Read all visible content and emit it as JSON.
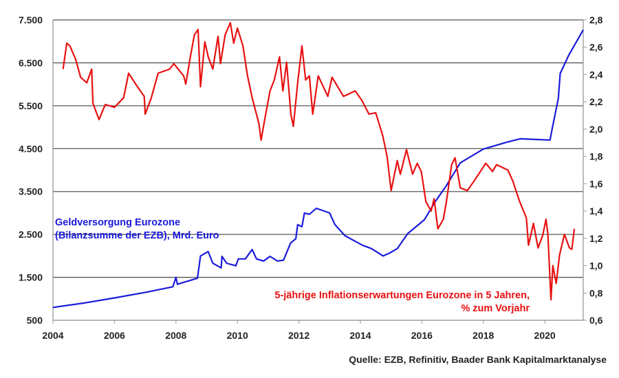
{
  "chart_data": {
    "type": "line",
    "title": "",
    "source": "Quelle: EZB, Refinitiv, Baader Bank Kapitalmarktanalyse",
    "xlim": [
      2004,
      2021.25
    ],
    "x_ticks": [
      "2004",
      "2006",
      "2008",
      "2010",
      "2012",
      "2014",
      "2016",
      "2018",
      "2020"
    ],
    "x_tick_values": [
      2004,
      2006,
      2008,
      2010,
      2012,
      2014,
      2016,
      2018,
      2020
    ],
    "y_left": {
      "lim": [
        500,
        7500
      ],
      "ticks": [
        7500,
        6500,
        5500,
        4500,
        3500,
        2500,
        1500,
        500
      ],
      "tick_labels": [
        "7.500",
        "6.500",
        "5.500",
        "4.500",
        "3.500",
        "2.500",
        "1.500",
        "500"
      ]
    },
    "y_right": {
      "lim": [
        0.6,
        2.8
      ],
      "ticks": [
        2.8,
        2.6,
        2.4,
        2.2,
        2.0,
        1.8,
        1.6,
        1.4,
        1.2,
        1.0,
        0.8,
        0.6
      ],
      "tick_labels": [
        "2,8",
        "2,6",
        "2,4",
        "2,2",
        "2,0",
        "1,8",
        "1,6",
        "1,4",
        "1,2",
        "1,0",
        "0,8",
        "0,6"
      ]
    },
    "grid": true,
    "series": [
      {
        "name": "Geldversorgung Eurozone (Bilanzsumme der EZB), Mrd. Euro",
        "label_lines": [
          "Geldversorgung Eurozone",
          "(Bilanzsumme der EZB), Mrd. Euro"
        ],
        "axis": "left",
        "color": "#1a1adb",
        "x": [
          2004.0,
          2005.0,
          2006.0,
          2007.0,
          2007.9,
          2008.0,
          2008.05,
          2008.7,
          2008.8,
          2009.05,
          2009.2,
          2009.47,
          2009.5,
          2009.65,
          2009.95,
          2010.03,
          2010.26,
          2010.48,
          2010.62,
          2010.85,
          2011.06,
          2011.3,
          2011.5,
          2011.73,
          2011.9,
          2011.96,
          2012.1,
          2012.18,
          2012.34,
          2012.57,
          2013.0,
          2013.17,
          2013.5,
          2014.07,
          2014.36,
          2014.74,
          2014.96,
          2015.2,
          2015.54,
          2016.08,
          2016.44,
          2016.8,
          2017.25,
          2018.0,
          2018.76,
          2019.2,
          2020.17,
          2020.24,
          2020.44,
          2020.5,
          2020.78,
          2021.25
        ],
        "y": [
          800,
          900,
          1020,
          1150,
          1280,
          1500,
          1340,
          1480,
          2000,
          2100,
          1830,
          1720,
          1990,
          1830,
          1770,
          1930,
          1930,
          2150,
          1930,
          1880,
          1990,
          1880,
          1900,
          2300,
          2400,
          2730,
          2680,
          3000,
          2970,
          3110,
          3000,
          2730,
          2470,
          2250,
          2170,
          2000,
          2070,
          2170,
          2520,
          2840,
          3270,
          3640,
          4170,
          4490,
          4650,
          4730,
          4700,
          4970,
          5670,
          6250,
          6680,
          7270
        ]
      },
      {
        "name": "5-jährige Inflationserwartungen Eurozone in 5 Jahren, % zum Vorjahr",
        "label_lines": [
          "5-jährige Inflationserwartungen Eurozone in 5 Jahren,",
          "% zum Vorjahr"
        ],
        "axis": "right",
        "color": "#e81010",
        "x": [
          2004.33,
          2004.45,
          2004.55,
          2004.74,
          2004.9,
          2005.1,
          2005.26,
          2005.3,
          2005.5,
          2005.7,
          2006.0,
          2006.3,
          2006.46,
          2006.75,
          2006.97,
          2007.0,
          2007.2,
          2007.42,
          2007.8,
          2007.93,
          2008.25,
          2008.32,
          2008.47,
          2008.6,
          2008.72,
          2008.8,
          2008.94,
          2009.05,
          2009.2,
          2009.37,
          2009.45,
          2009.6,
          2009.77,
          2009.88,
          2010.0,
          2010.18,
          2010.33,
          2010.48,
          2010.7,
          2010.77,
          2010.92,
          2011.06,
          2011.2,
          2011.37,
          2011.48,
          2011.6,
          2011.74,
          2011.82,
          2011.96,
          2012.1,
          2012.22,
          2012.34,
          2012.45,
          2012.63,
          2012.94,
          2013.08,
          2013.45,
          2013.83,
          2014.05,
          2014.28,
          2014.5,
          2014.73,
          2014.87,
          2015.0,
          2015.2,
          2015.3,
          2015.5,
          2015.7,
          2015.85,
          2015.98,
          2016.13,
          2016.3,
          2016.4,
          2016.52,
          2016.7,
          2016.8,
          2016.97,
          2017.08,
          2017.25,
          2017.48,
          2017.7,
          2018.08,
          2018.3,
          2018.43,
          2018.8,
          2018.96,
          2019.18,
          2019.4,
          2019.47,
          2019.63,
          2019.78,
          2019.93,
          2020.04,
          2020.1,
          2020.2,
          2020.26,
          2020.37,
          2020.48,
          2020.64,
          2020.8,
          2020.88,
          2020.96
        ],
        "y": [
          2.44,
          2.63,
          2.61,
          2.51,
          2.38,
          2.34,
          2.44,
          2.19,
          2.07,
          2.18,
          2.16,
          2.23,
          2.41,
          2.31,
          2.24,
          2.11,
          2.23,
          2.41,
          2.44,
          2.48,
          2.39,
          2.33,
          2.53,
          2.69,
          2.73,
          2.31,
          2.64,
          2.53,
          2.44,
          2.68,
          2.48,
          2.69,
          2.78,
          2.63,
          2.74,
          2.61,
          2.39,
          2.23,
          2.04,
          1.92,
          2.11,
          2.28,
          2.36,
          2.53,
          2.28,
          2.49,
          2.11,
          2.02,
          2.34,
          2.61,
          2.36,
          2.39,
          2.11,
          2.39,
          2.24,
          2.38,
          2.24,
          2.28,
          2.21,
          2.11,
          2.12,
          1.95,
          1.8,
          1.55,
          1.77,
          1.67,
          1.85,
          1.67,
          1.75,
          1.69,
          1.47,
          1.4,
          1.49,
          1.27,
          1.34,
          1.47,
          1.74,
          1.79,
          1.57,
          1.55,
          1.62,
          1.75,
          1.69,
          1.74,
          1.7,
          1.62,
          1.47,
          1.35,
          1.15,
          1.31,
          1.13,
          1.22,
          1.34,
          1.23,
          0.75,
          1.0,
          0.87,
          1.08,
          1.23,
          1.13,
          1.12,
          1.27
        ]
      }
    ]
  }
}
